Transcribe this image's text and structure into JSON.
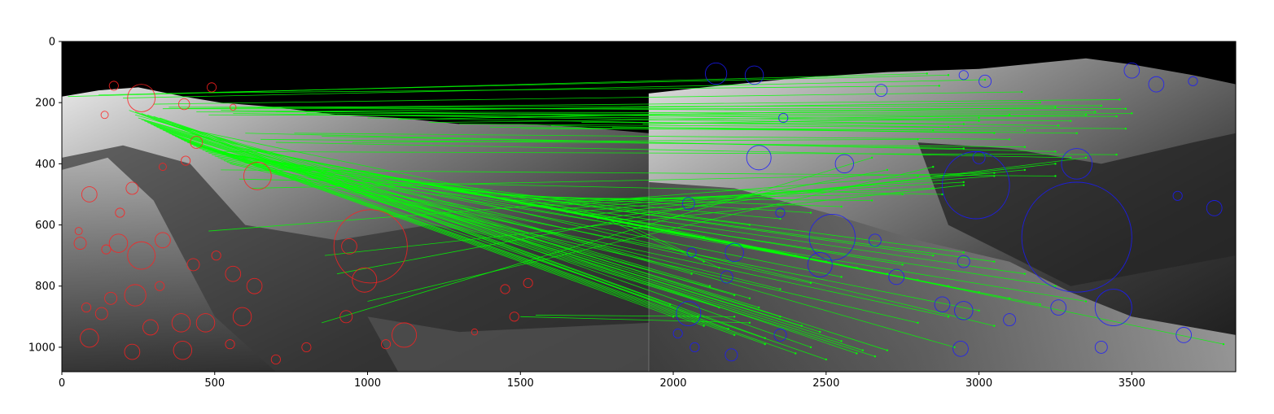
{
  "chart_data": {
    "type": "scatter",
    "title": "",
    "xlabel": "",
    "ylabel": "",
    "xlim": [
      0,
      3840
    ],
    "ylim": [
      1080,
      0
    ],
    "y_inverted": true,
    "grid": false,
    "legend": "none",
    "image_divider_x": 1920,
    "xticks": [
      0,
      500,
      1000,
      1500,
      2000,
      2500,
      3000,
      3500
    ],
    "yticks": [
      0,
      200,
      400,
      600,
      800,
      1000
    ],
    "colors": {
      "background": "#000000",
      "left_keypoints": "#ff2020",
      "right_keypoints": "#1a1aff",
      "matches": "#00ff00",
      "terrain_light": "#d8d8d8",
      "terrain_dark": "#2a2a2a"
    },
    "left_keypoints": [
      {
        "x": 170,
        "y": 145,
        "r": 15
      },
      {
        "x": 490,
        "y": 150,
        "r": 15
      },
      {
        "x": 260,
        "y": 185,
        "r": 45
      },
      {
        "x": 400,
        "y": 205,
        "r": 18
      },
      {
        "x": 560,
        "y": 215,
        "r": 10
      },
      {
        "x": 140,
        "y": 240,
        "r": 12
      },
      {
        "x": 440,
        "y": 330,
        "r": 20
      },
      {
        "x": 330,
        "y": 410,
        "r": 12
      },
      {
        "x": 405,
        "y": 390,
        "r": 15
      },
      {
        "x": 640,
        "y": 440,
        "r": 45
      },
      {
        "x": 230,
        "y": 480,
        "r": 20
      },
      {
        "x": 90,
        "y": 500,
        "r": 25
      },
      {
        "x": 190,
        "y": 560,
        "r": 15
      },
      {
        "x": 55,
        "y": 620,
        "r": 12
      },
      {
        "x": 60,
        "y": 660,
        "r": 20
      },
      {
        "x": 330,
        "y": 650,
        "r": 25
      },
      {
        "x": 185,
        "y": 660,
        "r": 30
      },
      {
        "x": 145,
        "y": 680,
        "r": 15
      },
      {
        "x": 940,
        "y": 670,
        "r": 25
      },
      {
        "x": 1010,
        "y": 670,
        "r": 120
      },
      {
        "x": 505,
        "y": 700,
        "r": 15
      },
      {
        "x": 260,
        "y": 700,
        "r": 45
      },
      {
        "x": 430,
        "y": 730,
        "r": 20
      },
      {
        "x": 560,
        "y": 760,
        "r": 25
      },
      {
        "x": 990,
        "y": 780,
        "r": 40
      },
      {
        "x": 630,
        "y": 800,
        "r": 25
      },
      {
        "x": 1450,
        "y": 810,
        "r": 15
      },
      {
        "x": 1525,
        "y": 790,
        "r": 15
      },
      {
        "x": 320,
        "y": 800,
        "r": 15
      },
      {
        "x": 240,
        "y": 830,
        "r": 35
      },
      {
        "x": 160,
        "y": 840,
        "r": 20
      },
      {
        "x": 80,
        "y": 870,
        "r": 15
      },
      {
        "x": 130,
        "y": 890,
        "r": 20
      },
      {
        "x": 590,
        "y": 900,
        "r": 30
      },
      {
        "x": 930,
        "y": 900,
        "r": 20
      },
      {
        "x": 1480,
        "y": 900,
        "r": 15
      },
      {
        "x": 470,
        "y": 920,
        "r": 30
      },
      {
        "x": 290,
        "y": 935,
        "r": 25
      },
      {
        "x": 390,
        "y": 920,
        "r": 30
      },
      {
        "x": 1120,
        "y": 960,
        "r": 40
      },
      {
        "x": 1350,
        "y": 950,
        "r": 10
      },
      {
        "x": 90,
        "y": 970,
        "r": 30
      },
      {
        "x": 230,
        "y": 1015,
        "r": 25
      },
      {
        "x": 395,
        "y": 1010,
        "r": 30
      },
      {
        "x": 800,
        "y": 1000,
        "r": 15
      },
      {
        "x": 1060,
        "y": 990,
        "r": 15
      },
      {
        "x": 550,
        "y": 990,
        "r": 15
      },
      {
        "x": 700,
        "y": 1040,
        "r": 15
      }
    ],
    "right_keypoints": [
      {
        "x": 2140,
        "y": 105,
        "r": 35
      },
      {
        "x": 2265,
        "y": 110,
        "r": 30
      },
      {
        "x": 2950,
        "y": 110,
        "r": 15
      },
      {
        "x": 3020,
        "y": 130,
        "r": 20
      },
      {
        "x": 3500,
        "y": 95,
        "r": 25
      },
      {
        "x": 3580,
        "y": 140,
        "r": 25
      },
      {
        "x": 3700,
        "y": 130,
        "r": 15
      },
      {
        "x": 2680,
        "y": 160,
        "r": 20
      },
      {
        "x": 2360,
        "y": 250,
        "r": 15
      },
      {
        "x": 2280,
        "y": 380,
        "r": 40
      },
      {
        "x": 2560,
        "y": 400,
        "r": 30
      },
      {
        "x": 3000,
        "y": 380,
        "r": 20
      },
      {
        "x": 3320,
        "y": 400,
        "r": 50
      },
      {
        "x": 2990,
        "y": 470,
        "r": 110
      },
      {
        "x": 2050,
        "y": 530,
        "r": 20
      },
      {
        "x": 2350,
        "y": 560,
        "r": 15
      },
      {
        "x": 3770,
        "y": 545,
        "r": 25
      },
      {
        "x": 3650,
        "y": 505,
        "r": 15
      },
      {
        "x": 2520,
        "y": 640,
        "r": 75
      },
      {
        "x": 3320,
        "y": 640,
        "r": 180
      },
      {
        "x": 2660,
        "y": 650,
        "r": 20
      },
      {
        "x": 2200,
        "y": 690,
        "r": 30
      },
      {
        "x": 2060,
        "y": 690,
        "r": 15
      },
      {
        "x": 2480,
        "y": 730,
        "r": 40
      },
      {
        "x": 2950,
        "y": 720,
        "r": 20
      },
      {
        "x": 2175,
        "y": 770,
        "r": 20
      },
      {
        "x": 2730,
        "y": 770,
        "r": 25
      },
      {
        "x": 2880,
        "y": 860,
        "r": 25
      },
      {
        "x": 3440,
        "y": 870,
        "r": 60
      },
      {
        "x": 3260,
        "y": 870,
        "r": 25
      },
      {
        "x": 2050,
        "y": 890,
        "r": 40
      },
      {
        "x": 2950,
        "y": 880,
        "r": 30
      },
      {
        "x": 3100,
        "y": 910,
        "r": 20
      },
      {
        "x": 2015,
        "y": 955,
        "r": 15
      },
      {
        "x": 2350,
        "y": 960,
        "r": 20
      },
      {
        "x": 2070,
        "y": 1000,
        "r": 15
      },
      {
        "x": 2190,
        "y": 1025,
        "r": 20
      },
      {
        "x": 3670,
        "y": 960,
        "r": 25
      },
      {
        "x": 2940,
        "y": 1005,
        "r": 25
      },
      {
        "x": 3400,
        "y": 1000,
        "r": 20
      }
    ],
    "matches": [
      {
        "x1": 20,
        "y1": 180,
        "x2": 2830,
        "y2": 105
      },
      {
        "x1": 120,
        "y1": 175,
        "x2": 2900,
        "y2": 110
      },
      {
        "x1": 200,
        "y1": 185,
        "x2": 3020,
        "y2": 125
      },
      {
        "x1": 480,
        "y1": 168,
        "x2": 2870,
        "y2": 145
      },
      {
        "x1": 300,
        "y1": 205,
        "x2": 3140,
        "y2": 165
      },
      {
        "x1": 330,
        "y1": 220,
        "x2": 3460,
        "y2": 190
      },
      {
        "x1": 350,
        "y1": 215,
        "x2": 3400,
        "y2": 210
      },
      {
        "x1": 410,
        "y1": 220,
        "x2": 3480,
        "y2": 220
      },
      {
        "x1": 440,
        "y1": 230,
        "x2": 3500,
        "y2": 235
      },
      {
        "x1": 480,
        "y1": 240,
        "x2": 3450,
        "y2": 245
      },
      {
        "x1": 520,
        "y1": 225,
        "x2": 3300,
        "y2": 260
      },
      {
        "x1": 560,
        "y1": 235,
        "x2": 3260,
        "y2": 275
      },
      {
        "x1": 640,
        "y1": 215,
        "x2": 3380,
        "y2": 230
      },
      {
        "x1": 700,
        "y1": 230,
        "x2": 3200,
        "y2": 200
      },
      {
        "x1": 800,
        "y1": 235,
        "x2": 3100,
        "y2": 240
      },
      {
        "x1": 900,
        "y1": 240,
        "x2": 3000,
        "y2": 260
      },
      {
        "x1": 1000,
        "y1": 250,
        "x2": 2900,
        "y2": 280
      },
      {
        "x1": 1100,
        "y1": 255,
        "x2": 3250,
        "y2": 215
      },
      {
        "x1": 1200,
        "y1": 265,
        "x2": 3350,
        "y2": 240
      },
      {
        "x1": 1300,
        "y1": 270,
        "x2": 3480,
        "y2": 285
      },
      {
        "x1": 1400,
        "y1": 280,
        "x2": 3320,
        "y2": 300
      },
      {
        "x1": 1500,
        "y1": 285,
        "x2": 3150,
        "y2": 290
      },
      {
        "x1": 1600,
        "y1": 275,
        "x2": 3050,
        "y2": 300
      },
      {
        "x1": 1700,
        "y1": 265,
        "x2": 2950,
        "y2": 270
      },
      {
        "x1": 1800,
        "y1": 280,
        "x2": 2850,
        "y2": 290
      },
      {
        "x1": 1900,
        "y1": 270,
        "x2": 3000,
        "y2": 250
      },
      {
        "x1": 600,
        "y1": 300,
        "x2": 3250,
        "y2": 360
      },
      {
        "x1": 650,
        "y1": 320,
        "x2": 3150,
        "y2": 345
      },
      {
        "x1": 700,
        "y1": 330,
        "x2": 3300,
        "y2": 380
      },
      {
        "x1": 760,
        "y1": 300,
        "x2": 3100,
        "y2": 320
      },
      {
        "x1": 850,
        "y1": 310,
        "x2": 2950,
        "y2": 350
      },
      {
        "x1": 950,
        "y1": 330,
        "x2": 2800,
        "y2": 320
      },
      {
        "x1": 500,
        "y1": 360,
        "x2": 3450,
        "y2": 370
      },
      {
        "x1": 520,
        "y1": 420,
        "x2": 3250,
        "y2": 440
      },
      {
        "x1": 580,
        "y1": 450,
        "x2": 2880,
        "y2": 500
      },
      {
        "x1": 620,
        "y1": 480,
        "x2": 3050,
        "y2": 430
      },
      {
        "x1": 480,
        "y1": 620,
        "x2": 2800,
        "y2": 440
      },
      {
        "x1": 860,
        "y1": 700,
        "x2": 2950,
        "y2": 470
      },
      {
        "x1": 900,
        "y1": 760,
        "x2": 2700,
        "y2": 420
      },
      {
        "x1": 1000,
        "y1": 850,
        "x2": 2850,
        "y2": 410
      },
      {
        "x1": 850,
        "y1": 920,
        "x2": 2650,
        "y2": 380
      },
      {
        "x1": 240,
        "y1": 240,
        "x2": 2060,
        "y2": 760
      },
      {
        "x1": 250,
        "y1": 250,
        "x2": 2120,
        "y2": 800
      },
      {
        "x1": 260,
        "y1": 255,
        "x2": 2200,
        "y2": 830
      },
      {
        "x1": 270,
        "y1": 260,
        "x2": 2280,
        "y2": 870
      },
      {
        "x1": 280,
        "y1": 265,
        "x2": 2350,
        "y2": 900
      },
      {
        "x1": 290,
        "y1": 270,
        "x2": 2420,
        "y2": 930
      },
      {
        "x1": 300,
        "y1": 275,
        "x2": 2480,
        "y2": 950
      },
      {
        "x1": 310,
        "y1": 280,
        "x2": 2550,
        "y2": 980
      },
      {
        "x1": 320,
        "y1": 285,
        "x2": 2620,
        "y2": 1010
      },
      {
        "x1": 330,
        "y1": 290,
        "x2": 2660,
        "y2": 1030
      },
      {
        "x1": 340,
        "y1": 295,
        "x2": 2500,
        "y2": 1040
      },
      {
        "x1": 350,
        "y1": 300,
        "x2": 2400,
        "y2": 1020
      },
      {
        "x1": 360,
        "y1": 305,
        "x2": 2300,
        "y2": 990
      },
      {
        "x1": 370,
        "y1": 310,
        "x2": 2200,
        "y2": 960
      },
      {
        "x1": 380,
        "y1": 315,
        "x2": 2100,
        "y2": 930
      },
      {
        "x1": 390,
        "y1": 320,
        "x2": 2000,
        "y2": 900
      },
      {
        "x1": 400,
        "y1": 325,
        "x2": 2150,
        "y2": 870
      },
      {
        "x1": 410,
        "y1": 330,
        "x2": 2250,
        "y2": 840
      },
      {
        "x1": 420,
        "y1": 335,
        "x2": 2350,
        "y2": 810
      },
      {
        "x1": 430,
        "y1": 340,
        "x2": 2450,
        "y2": 790
      },
      {
        "x1": 440,
        "y1": 345,
        "x2": 2550,
        "y2": 770
      },
      {
        "x1": 450,
        "y1": 350,
        "x2": 2650,
        "y2": 750
      },
      {
        "x1": 460,
        "y1": 355,
        "x2": 2750,
        "y2": 730
      },
      {
        "x1": 470,
        "y1": 360,
        "x2": 2850,
        "y2": 700
      },
      {
        "x1": 480,
        "y1": 365,
        "x2": 2950,
        "y2": 690
      },
      {
        "x1": 490,
        "y1": 370,
        "x2": 3050,
        "y2": 720
      },
      {
        "x1": 500,
        "y1": 375,
        "x2": 3150,
        "y2": 760
      },
      {
        "x1": 510,
        "y1": 380,
        "x2": 3250,
        "y2": 800
      },
      {
        "x1": 520,
        "y1": 385,
        "x2": 3350,
        "y2": 850
      },
      {
        "x1": 530,
        "y1": 390,
        "x2": 3000,
        "y2": 880
      },
      {
        "x1": 540,
        "y1": 395,
        "x2": 2900,
        "y2": 900
      },
      {
        "x1": 550,
        "y1": 400,
        "x2": 2800,
        "y2": 920
      },
      {
        "x1": 420,
        "y1": 300,
        "x2": 3050,
        "y2": 930
      },
      {
        "x1": 380,
        "y1": 280,
        "x2": 3800,
        "y2": 990
      },
      {
        "x1": 360,
        "y1": 270,
        "x2": 2920,
        "y2": 1000
      },
      {
        "x1": 340,
        "y1": 260,
        "x2": 2700,
        "y2": 1010
      },
      {
        "x1": 320,
        "y1": 250,
        "x2": 2600,
        "y2": 1020
      },
      {
        "x1": 300,
        "y1": 245,
        "x2": 2450,
        "y2": 1000
      },
      {
        "x1": 280,
        "y1": 240,
        "x2": 2300,
        "y2": 970
      },
      {
        "x1": 260,
        "y1": 235,
        "x2": 2180,
        "y2": 940
      },
      {
        "x1": 240,
        "y1": 230,
        "x2": 2080,
        "y2": 900
      },
      {
        "x1": 220,
        "y1": 225,
        "x2": 1990,
        "y2": 860
      },
      {
        "x1": 600,
        "y1": 350,
        "x2": 2100,
        "y2": 640
      },
      {
        "x1": 650,
        "y1": 360,
        "x2": 2200,
        "y2": 660
      },
      {
        "x1": 700,
        "y1": 370,
        "x2": 2300,
        "y2": 680
      },
      {
        "x1": 750,
        "y1": 380,
        "x2": 2400,
        "y2": 700
      },
      {
        "x1": 800,
        "y1": 390,
        "x2": 2500,
        "y2": 720
      },
      {
        "x1": 850,
        "y1": 400,
        "x2": 2600,
        "y2": 740
      },
      {
        "x1": 900,
        "y1": 410,
        "x2": 2700,
        "y2": 760
      },
      {
        "x1": 950,
        "y1": 420,
        "x2": 2800,
        "y2": 780
      },
      {
        "x1": 1000,
        "y1": 430,
        "x2": 2900,
        "y2": 800
      },
      {
        "x1": 1050,
        "y1": 440,
        "x2": 3000,
        "y2": 820
      },
      {
        "x1": 1100,
        "y1": 450,
        "x2": 3100,
        "y2": 840
      },
      {
        "x1": 1150,
        "y1": 460,
        "x2": 3200,
        "y2": 860
      },
      {
        "x1": 1200,
        "y1": 470,
        "x2": 2250,
        "y2": 600
      },
      {
        "x1": 1250,
        "y1": 480,
        "x2": 2350,
        "y2": 580
      },
      {
        "x1": 1300,
        "y1": 490,
        "x2": 2450,
        "y2": 560
      },
      {
        "x1": 1350,
        "y1": 500,
        "x2": 2550,
        "y2": 540
      },
      {
        "x1": 1400,
        "y1": 510,
        "x2": 2650,
        "y2": 520
      },
      {
        "x1": 1450,
        "y1": 520,
        "x2": 2750,
        "y2": 500
      },
      {
        "x1": 1500,
        "y1": 530,
        "x2": 2850,
        "y2": 480
      },
      {
        "x1": 1550,
        "y1": 540,
        "x2": 2950,
        "y2": 460
      },
      {
        "x1": 1600,
        "y1": 550,
        "x2": 3050,
        "y2": 440
      },
      {
        "x1": 1650,
        "y1": 560,
        "x2": 3150,
        "y2": 420
      },
      {
        "x1": 1700,
        "y1": 570,
        "x2": 3250,
        "y2": 400
      },
      {
        "x1": 1750,
        "y1": 580,
        "x2": 3350,
        "y2": 380
      },
      {
        "x1": 1800,
        "y1": 590,
        "x2": 2100,
        "y2": 720
      },
      {
        "x1": 1850,
        "y1": 600,
        "x2": 2150,
        "y2": 740
      },
      {
        "x1": 1550,
        "y1": 895,
        "x2": 2200,
        "y2": 900
      },
      {
        "x1": 1500,
        "y1": 900,
        "x2": 2250,
        "y2": 920
      }
    ]
  }
}
